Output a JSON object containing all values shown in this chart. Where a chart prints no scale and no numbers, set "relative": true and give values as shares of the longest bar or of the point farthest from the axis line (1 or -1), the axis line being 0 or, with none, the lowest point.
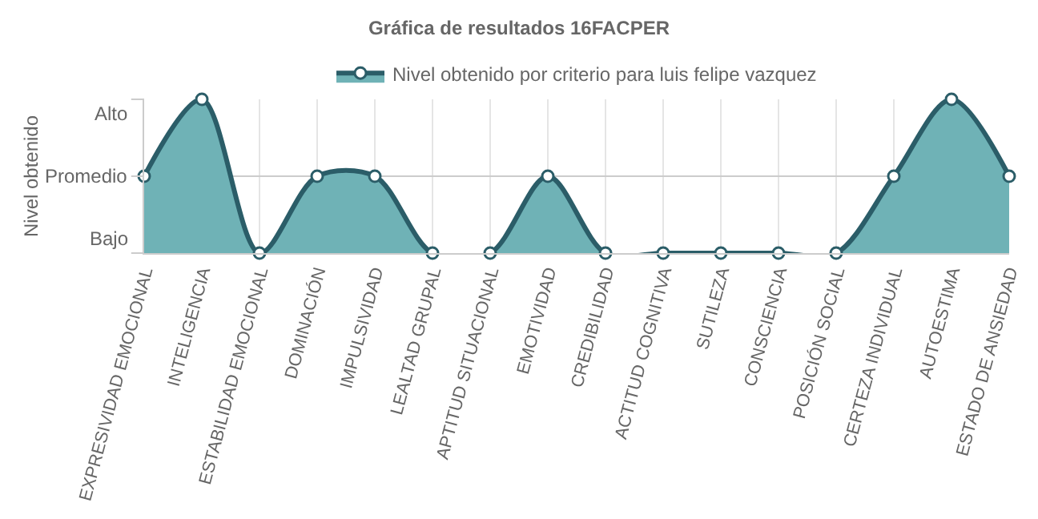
{
  "chart_data": {
    "type": "area",
    "title": "Gráfica de resultados 16FACPER",
    "ylabel": "Nivel obtenido",
    "categories": [
      "EXPRESIVIDAD EMOCIONAL",
      "INTELIGENCIA",
      "ESTABILIDAD EMOCIONAL",
      "DOMINACIÓN",
      "IMPULSIVIDAD",
      "LEALTAD GRUPAL",
      "APTITUD SITUACIONAL",
      "EMOTIVIDAD",
      "CREDIBILIDAD",
      "ACTITUD COGNITIVA",
      "SUTILEZA",
      "CONSCIENCIA",
      "POSICIÓN SOCIAL",
      "CERTEZA INDIVIDUAL",
      "AUTOESTIMA",
      "ESTADO DE ANSIEDAD"
    ],
    "series": [
      {
        "name": "Nivel obtenido por criterio para luis felipe vazquez",
        "color": "#6fb2b6",
        "values": [
          0.5,
          1,
          0,
          0.5,
          0.5,
          0,
          0,
          0.5,
          0,
          0,
          0,
          0,
          0,
          0.5,
          1,
          0.5
        ]
      }
    ],
    "relative": true,
    "annotations": [
      "Bajo",
      "Promedio",
      "Alto"
    ],
    "grid": true,
    "legend": "top",
    "marker": "circle",
    "line_style": "solid"
  }
}
